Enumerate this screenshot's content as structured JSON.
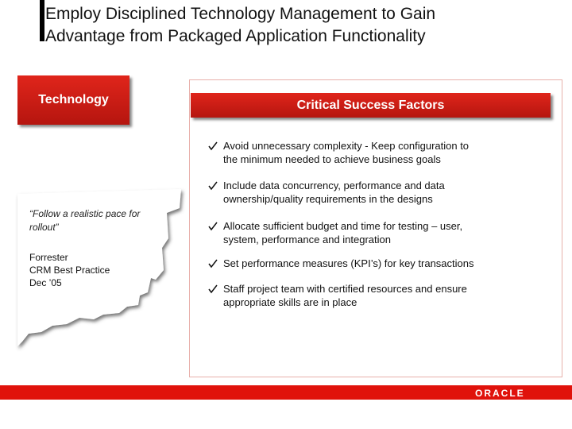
{
  "title_lines": [
    "Employ Disciplined Technology Management to Gain",
    "Advantage from Packaged Application Functionality"
  ],
  "technology_label": "Technology",
  "quote_lines": [
    "“Follow a realistic pace for",
    "rollout”"
  ],
  "source_lines": [
    "Forrester",
    "CRM Best Practice",
    "Dec ’05"
  ],
  "panel": {
    "header": "Critical Success Factors",
    "items": [
      {
        "lines": [
          "Avoid unnecessary complexity - Keep configuration to",
          "the minimum needed to achieve business goals"
        ]
      },
      {
        "lines": [
          "Include data concurrency, performance and data",
          "ownership/quality requirements in the designs"
        ]
      },
      {
        "lines": [
          "Allocate sufficient budget and time for testing – user,",
          "system, performance and integration"
        ]
      },
      {
        "lines": [
          "Set performance measures (KPI’s) for key transactions"
        ]
      },
      {
        "lines": [
          "Staff project team with certified resources and ensure",
          "appropriate skills are in place"
        ]
      }
    ]
  },
  "footer": {
    "logo": "ORACLE"
  }
}
